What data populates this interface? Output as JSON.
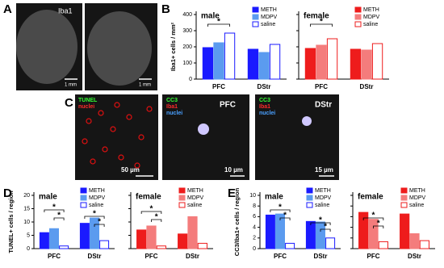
{
  "panel_letters": [
    "A",
    "B",
    "C",
    "D",
    "E"
  ],
  "micrographs": [
    {
      "labels": [
        "Iba1",
        "1 mm"
      ]
    },
    {
      "labels": [
        "1 mm"
      ]
    },
    {
      "labels": [
        "TUNEL",
        "nuclei",
        "50 µm"
      ]
    },
    {
      "labels": [
        "CC3",
        "Iba1",
        "nuclei",
        "PFC",
        "10 µm"
      ]
    },
    {
      "labels": [
        "CC3",
        "Iba1",
        "nuclei",
        "DStr",
        "15 µm"
      ]
    }
  ],
  "chart_data": [
    {
      "type": "bar",
      "title": "male",
      "ylabel": "Iba1+ cells / mm²",
      "tick_labels": true,
      "legend": "top-right",
      "categories": [
        "PFC",
        "DStr"
      ],
      "ylim": [
        0,
        400
      ],
      "yticks": [
        0,
        100,
        200,
        300,
        400
      ],
      "series": [
        {
          "name": "METH",
          "color": "#1a1aff",
          "fill": "#1a1aff",
          "values": [
            195,
            185
          ]
        },
        {
          "name": "MDPV",
          "color": "#5b9bef",
          "fill": "#5b9bef",
          "values": [
            225,
            165
          ]
        },
        {
          "name": "saline",
          "color": "#1a1aff",
          "fill": "#ffffff",
          "values": [
            285,
            215
          ]
        }
      ],
      "annotations": [
        "*"
      ]
    },
    {
      "type": "bar",
      "title": "female",
      "tick_labels": false,
      "legend": "top-right",
      "categories": [
        "PFC",
        "DStr"
      ],
      "ylim": [
        0,
        400
      ],
      "yticks": [
        0,
        100,
        200,
        300,
        400
      ],
      "series": [
        {
          "name": "METH",
          "color": "#ee1c1c",
          "fill": "#ee1c1c",
          "values": [
            190,
            185
          ]
        },
        {
          "name": "MDPV",
          "color": "#f47c7c",
          "fill": "#f47c7c",
          "values": [
            210,
            180
          ]
        },
        {
          "name": "saline",
          "color": "#ee1c1c",
          "fill": "#ffffff",
          "values": [
            250,
            220
          ]
        }
      ],
      "annotations": [
        "*"
      ]
    },
    {
      "type": "bar",
      "title": "male",
      "ylabel": "TUNEL+ cells / region",
      "tick_labels": true,
      "legend": "top-right",
      "categories": [
        "PFC",
        "DStr"
      ],
      "ylim": [
        0,
        20
      ],
      "yticks": [
        0,
        5,
        10,
        15,
        20
      ],
      "series": [
        {
          "name": "METH",
          "color": "#1a1aff",
          "fill": "#1a1aff",
          "values": [
            6,
            9.5
          ]
        },
        {
          "name": "MDPV",
          "color": "#5b9bef",
          "fill": "#5b9bef",
          "values": [
            7.5,
            11.5
          ]
        },
        {
          "name": "saline",
          "color": "#1a1aff",
          "fill": "#ffffff",
          "values": [
            1,
            3
          ]
        }
      ],
      "annotations": [
        "*",
        "*",
        "*",
        "*"
      ]
    },
    {
      "type": "bar",
      "title": "female",
      "tick_labels": false,
      "legend": "top-right",
      "categories": [
        "PFC",
        "DStr"
      ],
      "ylim": [
        0,
        20
      ],
      "yticks": [
        0,
        5,
        10,
        15,
        20
      ],
      "series": [
        {
          "name": "METH",
          "color": "#ee1c1c",
          "fill": "#ee1c1c",
          "values": [
            7,
            5.5
          ]
        },
        {
          "name": "MDPV",
          "color": "#f47c7c",
          "fill": "#f47c7c",
          "values": [
            8.5,
            12
          ]
        },
        {
          "name": "saline",
          "color": "#ee1c1c",
          "fill": "#ffffff",
          "values": [
            1,
            2
          ]
        }
      ],
      "annotations": [
        "*",
        "*"
      ]
    },
    {
      "type": "bar",
      "title": "male",
      "ylabel": "CC3/Iba1+ cells / region",
      "tick_labels": true,
      "legend": "top-right",
      "categories": [
        "PFC",
        "DStr"
      ],
      "ylim": [
        0,
        10
      ],
      "yticks": [
        0,
        2,
        4,
        6,
        8,
        10
      ],
      "series": [
        {
          "name": "METH",
          "color": "#1a1aff",
          "fill": "#1a1aff",
          "values": [
            6.3,
            5.1
          ]
        },
        {
          "name": "MDPV",
          "color": "#5b9bef",
          "fill": "#5b9bef",
          "values": [
            6.5,
            5
          ]
        },
        {
          "name": "saline",
          "color": "#1a1aff",
          "fill": "#ffffff",
          "values": [
            1,
            2
          ]
        }
      ],
      "annotations": [
        "*",
        "*",
        "*",
        "*"
      ]
    },
    {
      "type": "bar",
      "title": "female",
      "tick_labels": false,
      "legend": "top-right",
      "categories": [
        "PFC",
        "DStr"
      ],
      "ylim": [
        0,
        10
      ],
      "yticks": [
        0,
        2,
        4,
        6,
        8,
        10
      ],
      "series": [
        {
          "name": "METH",
          "color": "#ee1c1c",
          "fill": "#ee1c1c",
          "values": [
            6.8,
            6.5
          ]
        },
        {
          "name": "MDPV",
          "color": "#f47c7c",
          "fill": "#f47c7c",
          "values": [
            5.5,
            2.8
          ]
        },
        {
          "name": "saline",
          "color": "#ee1c1c",
          "fill": "#ffffff",
          "values": [
            1.3,
            1.5
          ]
        }
      ],
      "annotations": [
        "*",
        "*"
      ]
    }
  ]
}
